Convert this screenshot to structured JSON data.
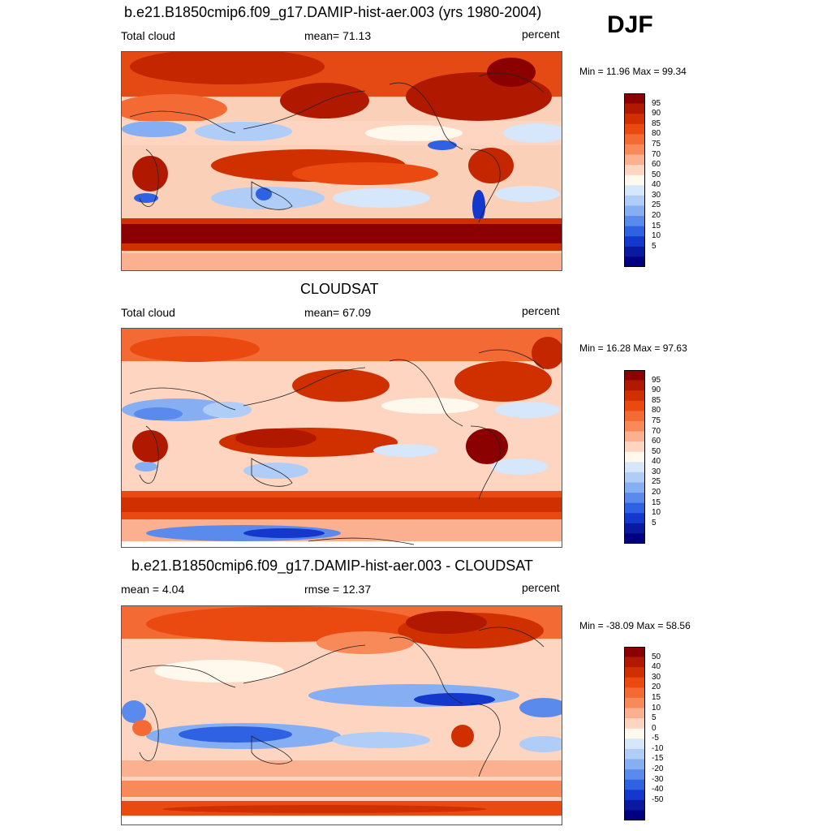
{
  "season": "DJF",
  "panels": [
    {
      "title": "b.e21.B1850cmip6.f09_g17.DAMIP-hist-aer.003 (yrs 1980-2004)",
      "left_label": "Total cloud",
      "center_label": "mean=  71.13",
      "units": "percent",
      "minmax": "Min =  11.96 Max =  99.34",
      "colorbar_labels": [
        "95",
        "90",
        "85",
        "80",
        "75",
        "70",
        "60",
        "50",
        "40",
        "30",
        "25",
        "20",
        "15",
        "10",
        "5"
      ],
      "colorbar_colors": [
        "#8b0000",
        "#b01800",
        "#d03000",
        "#ea4a10",
        "#f46a34",
        "#f88a5a",
        "#fbb090",
        "#fdd5c0",
        "#fff8ec",
        "#d6e6fb",
        "#b0cdf7",
        "#86aef2",
        "#5a8aec",
        "#2f62e2",
        "#1438cc",
        "#0a1aa0",
        "#000080"
      ]
    },
    {
      "title": "CLOUDSAT",
      "left_label": "Total cloud",
      "center_label": "mean=  67.09",
      "units": "percent",
      "minmax": "Min =  16.28 Max =  97.63",
      "colorbar_labels": [
        "95",
        "90",
        "85",
        "80",
        "75",
        "70",
        "60",
        "50",
        "40",
        "30",
        "25",
        "20",
        "15",
        "10",
        "5"
      ],
      "colorbar_colors": [
        "#8b0000",
        "#b01800",
        "#d03000",
        "#ea4a10",
        "#f46a34",
        "#f88a5a",
        "#fbb090",
        "#fdd5c0",
        "#fff8ec",
        "#d6e6fb",
        "#b0cdf7",
        "#86aef2",
        "#5a8aec",
        "#2f62e2",
        "#1438cc",
        "#0a1aa0",
        "#000080"
      ]
    },
    {
      "title": "b.e21.B1850cmip6.f09_g17.DAMIP-hist-aer.003 - CLOUDSAT",
      "left_label": "mean =   4.04",
      "center_label": "rmse =  12.37",
      "units": "percent",
      "minmax": "Min = -38.09 Max =  58.56",
      "colorbar_labels": [
        "50",
        "40",
        "30",
        "20",
        "15",
        "10",
        "5",
        "0",
        "-5",
        "-10",
        "-15",
        "-20",
        "-30",
        "-40",
        "-50"
      ],
      "colorbar_colors": [
        "#8b0000",
        "#b01800",
        "#d03000",
        "#ea4a10",
        "#f46a34",
        "#f88a5a",
        "#fbb090",
        "#fdd5c0",
        "#fff8ec",
        "#d6e6fb",
        "#b0cdf7",
        "#86aef2",
        "#5a8aec",
        "#2f62e2",
        "#1438cc",
        "#0a1aa0",
        "#000080"
      ]
    }
  ]
}
